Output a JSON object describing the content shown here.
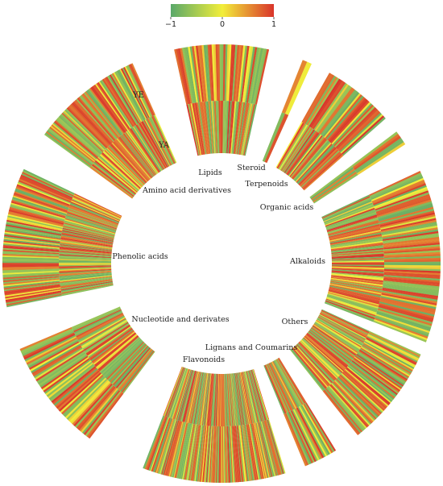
{
  "chart_data": {
    "type": "heatmap",
    "layout": "circular",
    "rings": [
      "YE",
      "YA"
    ],
    "colorbar": {
      "min": -1,
      "max": 1,
      "ticks": [
        "−1",
        "0",
        "1"
      ],
      "colors": [
        "#5aa86a",
        "#f2ee3a",
        "#d9342b"
      ]
    },
    "categories": [
      {
        "name": "Lipids",
        "count": 48,
        "yield": 0.45
      },
      {
        "name": "Steroid",
        "count": 2,
        "yield": 0.0
      },
      {
        "name": "Terpenoids",
        "count": 38,
        "yield": -0.05
      },
      {
        "name": "Organic acids",
        "count": 6,
        "yield": 0.0
      },
      {
        "name": "Alkaloids",
        "count": 92,
        "yield": 0.05
      },
      {
        "name": "Others",
        "count": 70,
        "yield": 0.1
      },
      {
        "name": "Lignans and Coumarins",
        "count": 20,
        "yield": 0.1
      },
      {
        "name": "Flavonoids",
        "count": 150,
        "yield": 0.05
      },
      {
        "name": "Nucleotide and derivates",
        "count": 60,
        "yield": -0.05
      },
      {
        "name": "Phenolic acids",
        "count": 95,
        "yield": 0.0
      },
      {
        "name": "Amino acid derivatives",
        "count": 80,
        "yield": 0.05
      }
    ]
  }
}
